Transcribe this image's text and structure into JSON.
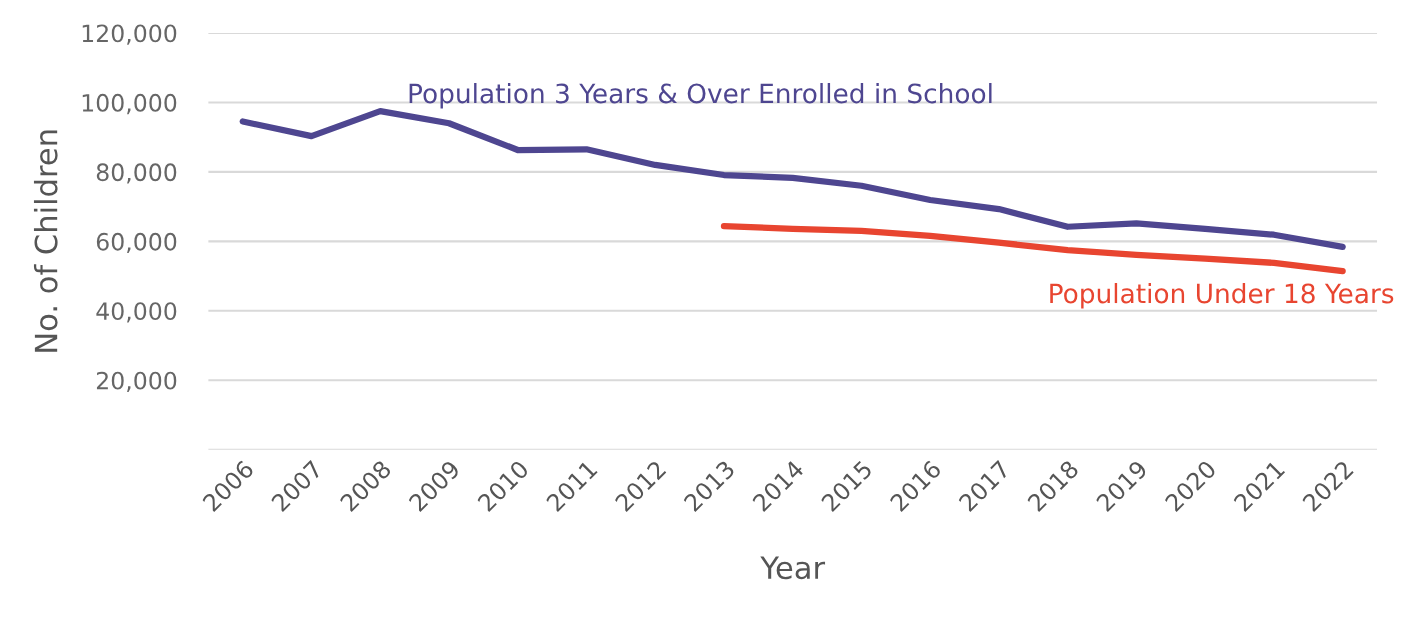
{
  "chart_data": {
    "type": "line",
    "xlabel": "Year",
    "ylabel": "No. of Children",
    "categories": [
      "2006",
      "2007",
      "2008",
      "2009",
      "2010",
      "2011",
      "2012",
      "2013",
      "2014",
      "2015",
      "2016",
      "2017",
      "2018",
      "2019",
      "2020",
      "2021",
      "2022"
    ],
    "series": [
      {
        "name": "Population 3 Years & Over Enrolled in School",
        "color": "#4e4690",
        "values": [
          94500,
          90300,
          97500,
          94000,
          86300,
          86500,
          82000,
          79100,
          78300,
          76000,
          71900,
          69300,
          64200,
          65200,
          63600,
          61900,
          58400
        ]
      },
      {
        "name": "Population Under 18 Years",
        "color": "#e84530",
        "values": [
          null,
          null,
          null,
          null,
          null,
          null,
          null,
          64400,
          63600,
          63000,
          61600,
          59600,
          57500,
          56100,
          55000,
          53800,
          51400
        ]
      }
    ],
    "ylim": [
      0,
      120000
    ],
    "yticks": [
      {
        "value": 0,
        "label": null
      },
      {
        "value": 20000,
        "label": "20,000"
      },
      {
        "value": 40000,
        "label": "40,000"
      },
      {
        "value": 60000,
        "label": "60,000"
      },
      {
        "value": 80000,
        "label": "80,000"
      },
      {
        "value": 100000,
        "label": "100,000"
      },
      {
        "value": 120000,
        "label": "120,000"
      }
    ],
    "grid": "y",
    "legend": false,
    "marker": "none",
    "line_style": "solid"
  }
}
